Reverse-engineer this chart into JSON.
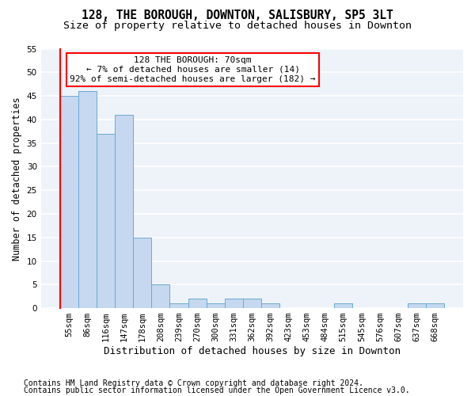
{
  "title": "128, THE BOROUGH, DOWNTON, SALISBURY, SP5 3LT",
  "subtitle": "Size of property relative to detached houses in Downton",
  "xlabel": "Distribution of detached houses by size in Downton",
  "ylabel": "Number of detached properties",
  "bin_labels": [
    "55sqm",
    "86sqm",
    "116sqm",
    "147sqm",
    "178sqm",
    "208sqm",
    "239sqm",
    "270sqm",
    "300sqm",
    "331sqm",
    "362sqm",
    "392sqm",
    "423sqm",
    "453sqm",
    "484sqm",
    "515sqm",
    "545sqm",
    "576sqm",
    "607sqm",
    "637sqm",
    "668sqm"
  ],
  "bar_values": [
    45,
    46,
    37,
    41,
    15,
    5,
    1,
    2,
    1,
    2,
    2,
    1,
    0,
    0,
    0,
    1,
    0,
    0,
    0,
    1,
    1
  ],
  "bar_color": "#c5d8ef",
  "bar_edge_color": "#6aaad4",
  "annotation_text": "128 THE BOROUGH: 70sqm\n← 7% of detached houses are smaller (14)\n92% of semi-detached houses are larger (182) →",
  "annotation_box_color": "white",
  "annotation_box_edge_color": "red",
  "ylim": [
    0,
    55
  ],
  "yticks": [
    0,
    5,
    10,
    15,
    20,
    25,
    30,
    35,
    40,
    45,
    50,
    55
  ],
  "footnote1": "Contains HM Land Registry data © Crown copyright and database right 2024.",
  "footnote2": "Contains public sector information licensed under the Open Government Licence v3.0.",
  "bg_color": "#ffffff",
  "plot_bg_color": "#eef2f9",
  "grid_color": "#ffffff",
  "title_fontsize": 10.5,
  "subtitle_fontsize": 9.5,
  "xlabel_fontsize": 9,
  "ylabel_fontsize": 8.5,
  "tick_fontsize": 7.5,
  "annotation_fontsize": 8,
  "footnote_fontsize": 7
}
